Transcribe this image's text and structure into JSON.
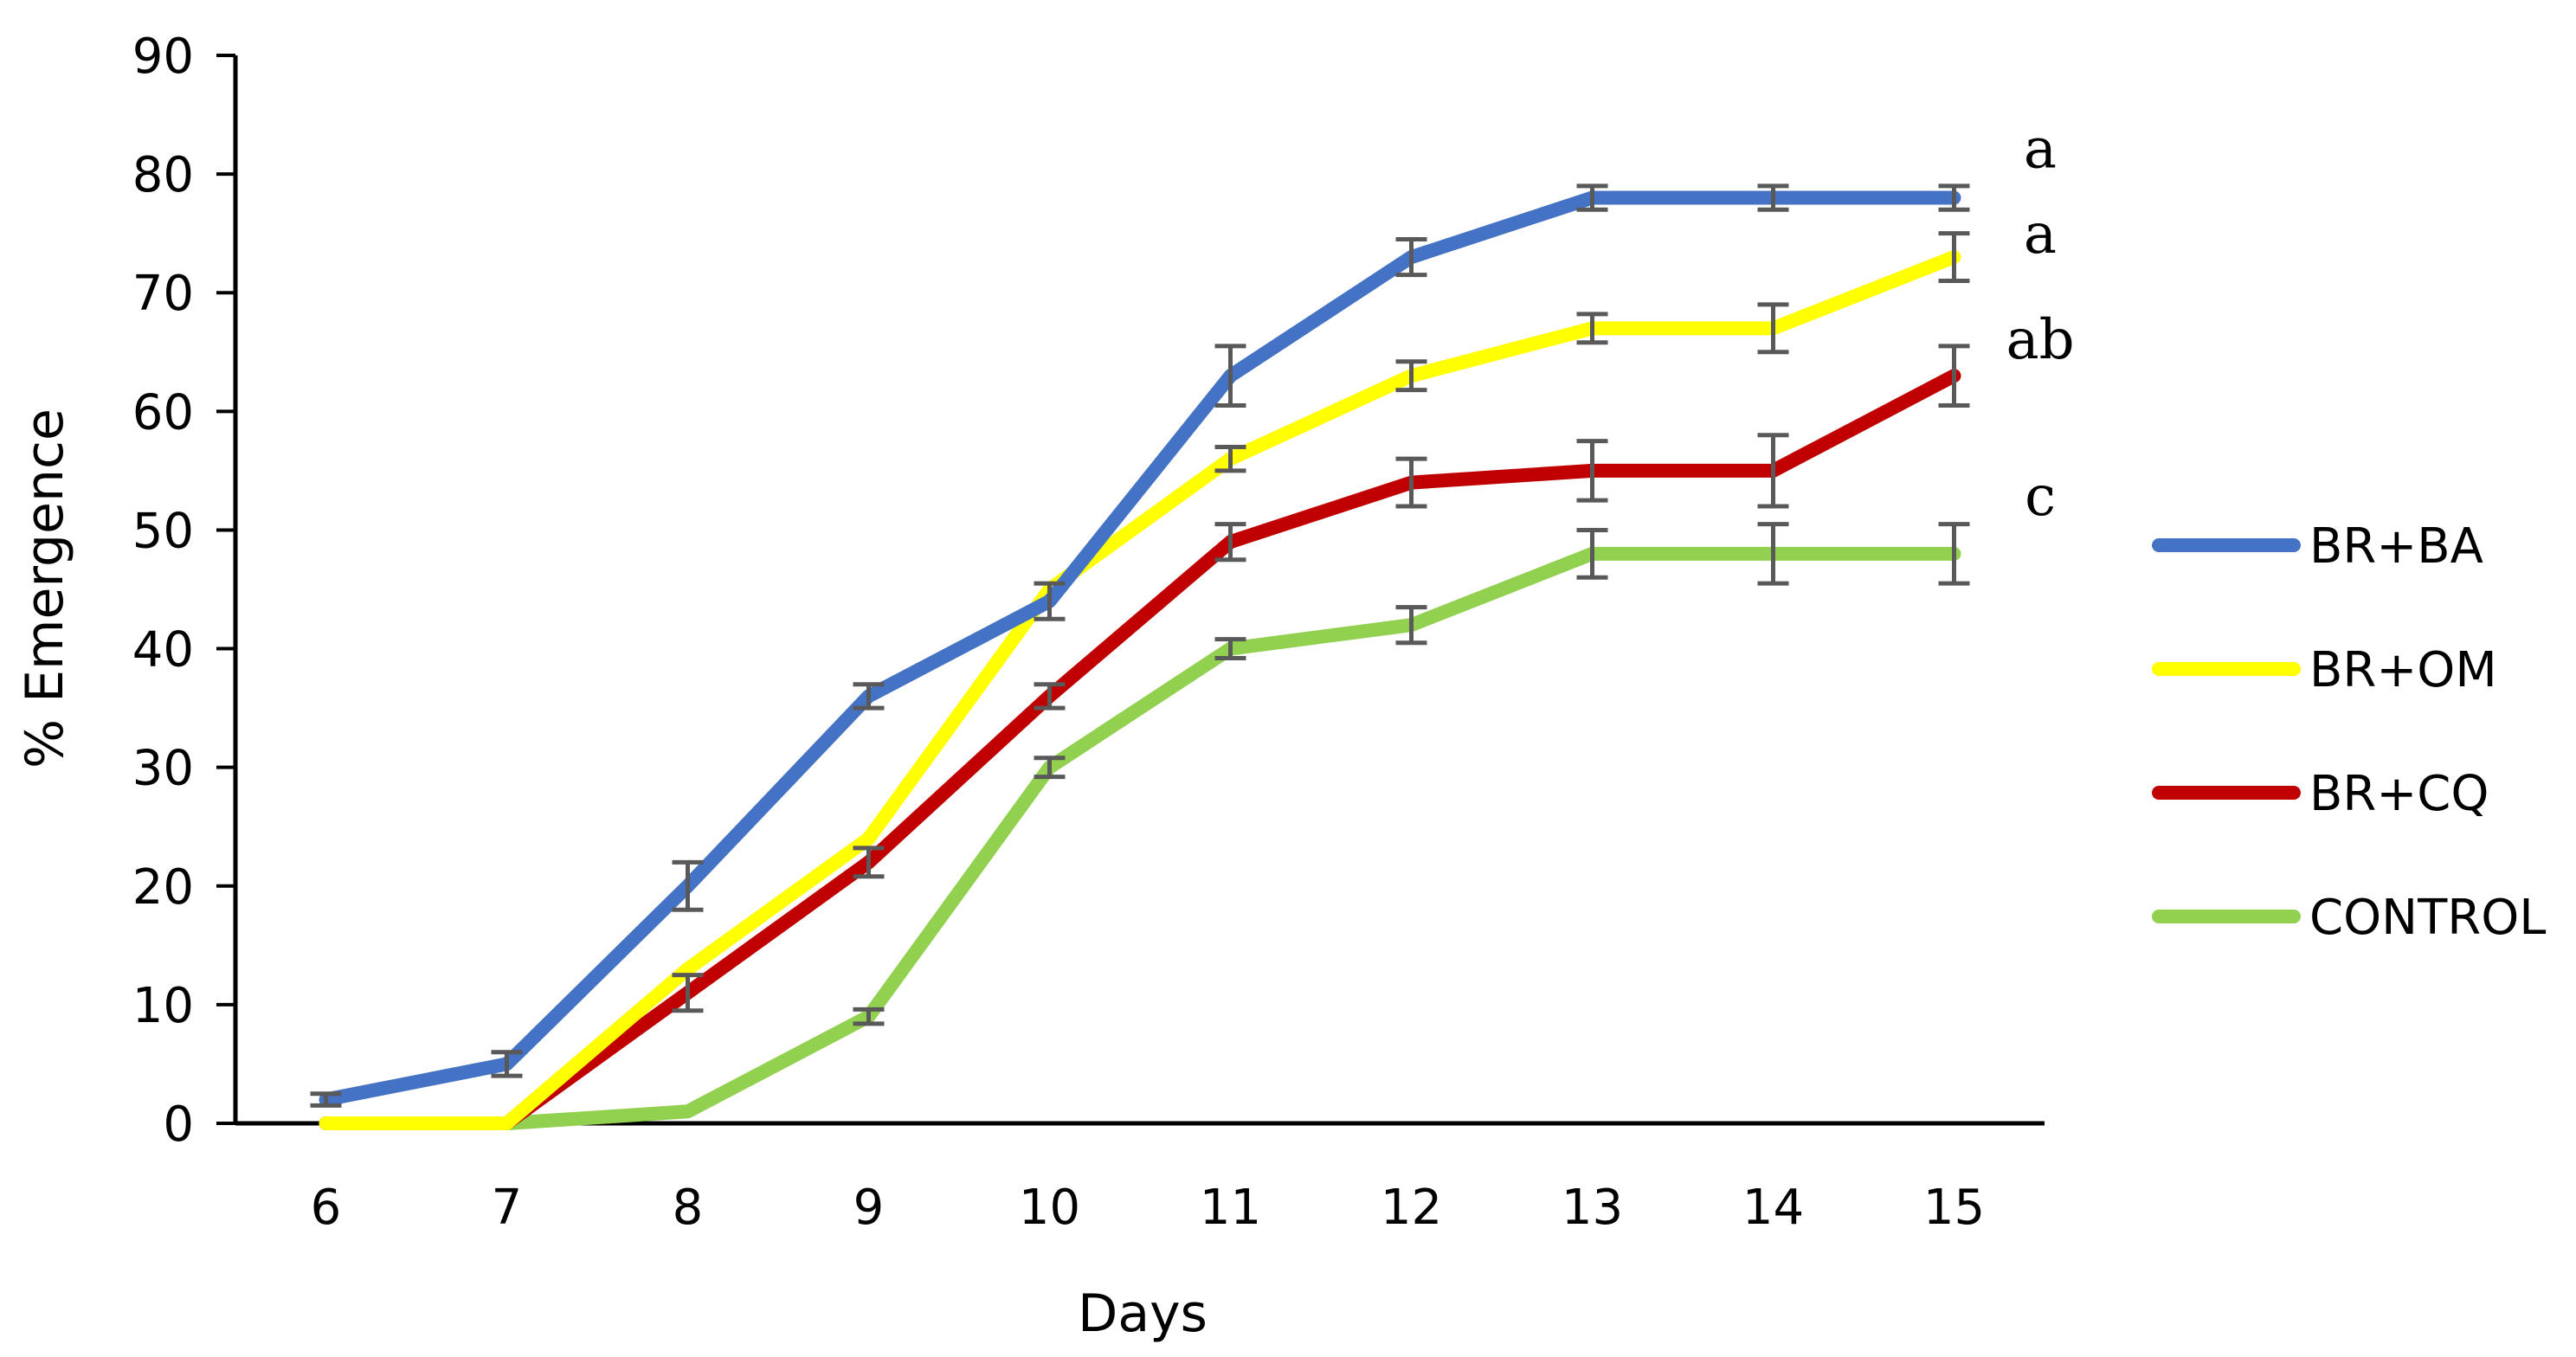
{
  "chart_data": {
    "type": "line",
    "title": "",
    "xlabel": "Days",
    "ylabel": "% Emergence",
    "x": [
      6,
      7,
      8,
      9,
      10,
      11,
      12,
      13,
      14,
      15
    ],
    "xlim": [
      5.5,
      15.5
    ],
    "ylim": [
      0,
      90
    ],
    "yticks": [
      0,
      10,
      20,
      30,
      40,
      50,
      60,
      70,
      80,
      90
    ],
    "grid": false,
    "legend_position": "right",
    "series": [
      {
        "name": "BR+BA",
        "color": "#4472C4",
        "values": [
          2,
          5,
          20,
          36,
          44,
          63,
          73,
          78,
          78,
          78
        ],
        "errors": [
          0.5,
          1,
          2,
          1,
          1.5,
          2.5,
          1.5,
          1,
          1,
          1
        ],
        "significance": "a"
      },
      {
        "name": "BR+OM",
        "color": "#FFFF00",
        "values": [
          0,
          0,
          13,
          24,
          45,
          56,
          63,
          67,
          67,
          73
        ],
        "errors": [
          0,
          0,
          0,
          0,
          0,
          1,
          1.2,
          1.2,
          2,
          2
        ],
        "significance": "a"
      },
      {
        "name": "BR+CQ",
        "color": "#C00000",
        "values": [
          0,
          0,
          11,
          22,
          36,
          49,
          54,
          55,
          55,
          63
        ],
        "errors": [
          0,
          0,
          1.5,
          1.2,
          1,
          1.5,
          2,
          2.5,
          3,
          2.5
        ],
        "significance": "ab"
      },
      {
        "name": "CONTROL",
        "color": "#92D050",
        "values": [
          0,
          0,
          1,
          9,
          30,
          40,
          42,
          48,
          48,
          48
        ],
        "errors": [
          0,
          0,
          0,
          0.6,
          0.8,
          0.8,
          1.5,
          2,
          2.5,
          2.5
        ],
        "significance": "c"
      }
    ],
    "error_bar_color": "#595959",
    "axis_color": "#000000"
  }
}
